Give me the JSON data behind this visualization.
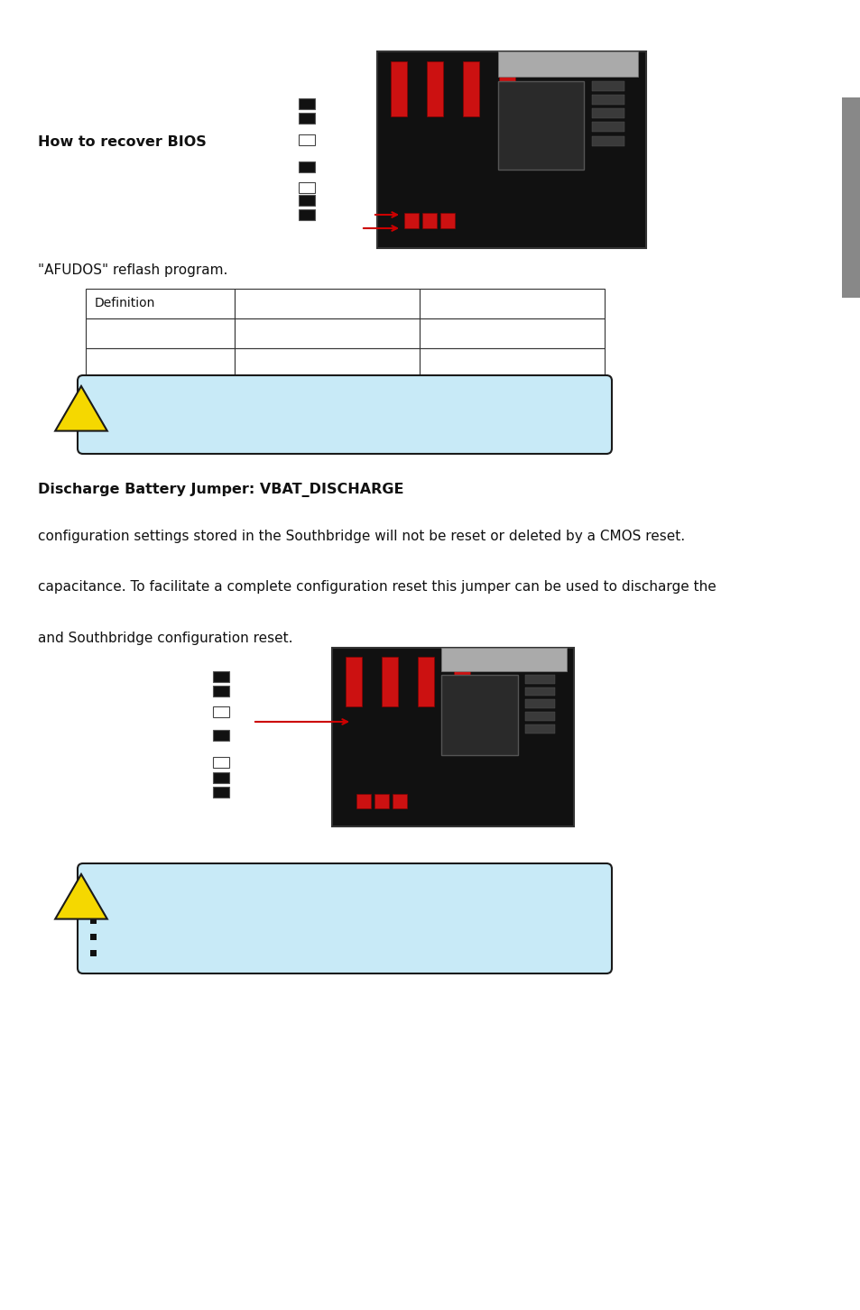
{
  "bg_color": "#ffffff",
  "title1": "How to recover BIOS",
  "text1": "\"AFUDOS\" reflash program.",
  "table_header": [
    "Definition",
    "",
    ""
  ],
  "table_rows": [
    [
      "",
      "",
      ""
    ],
    [
      "",
      "",
      ""
    ]
  ],
  "note_box_color": "#c8eaf7",
  "note_box_border": "#1a1a1a",
  "triangle_color": "#f5d800",
  "triangle_border": "#1a1a1a",
  "title2": "Discharge Battery Jumper: VBAT_DISCHARGE",
  "text2": "configuration settings stored in the Southbridge will not be reset or deleted by a CMOS reset.",
  "text3": "capacitance. To facilitate a complete configuration reset this jumper can be used to discharge the",
  "text4": "and Southbridge configuration reset.",
  "sidebar_color": "#888888",
  "arrow_color": "#cc0000",
  "jumper_black": "#111111",
  "jumper_white": "#ffffff",
  "mb_dark": "#1c1c1c",
  "mb_border": "#444444"
}
